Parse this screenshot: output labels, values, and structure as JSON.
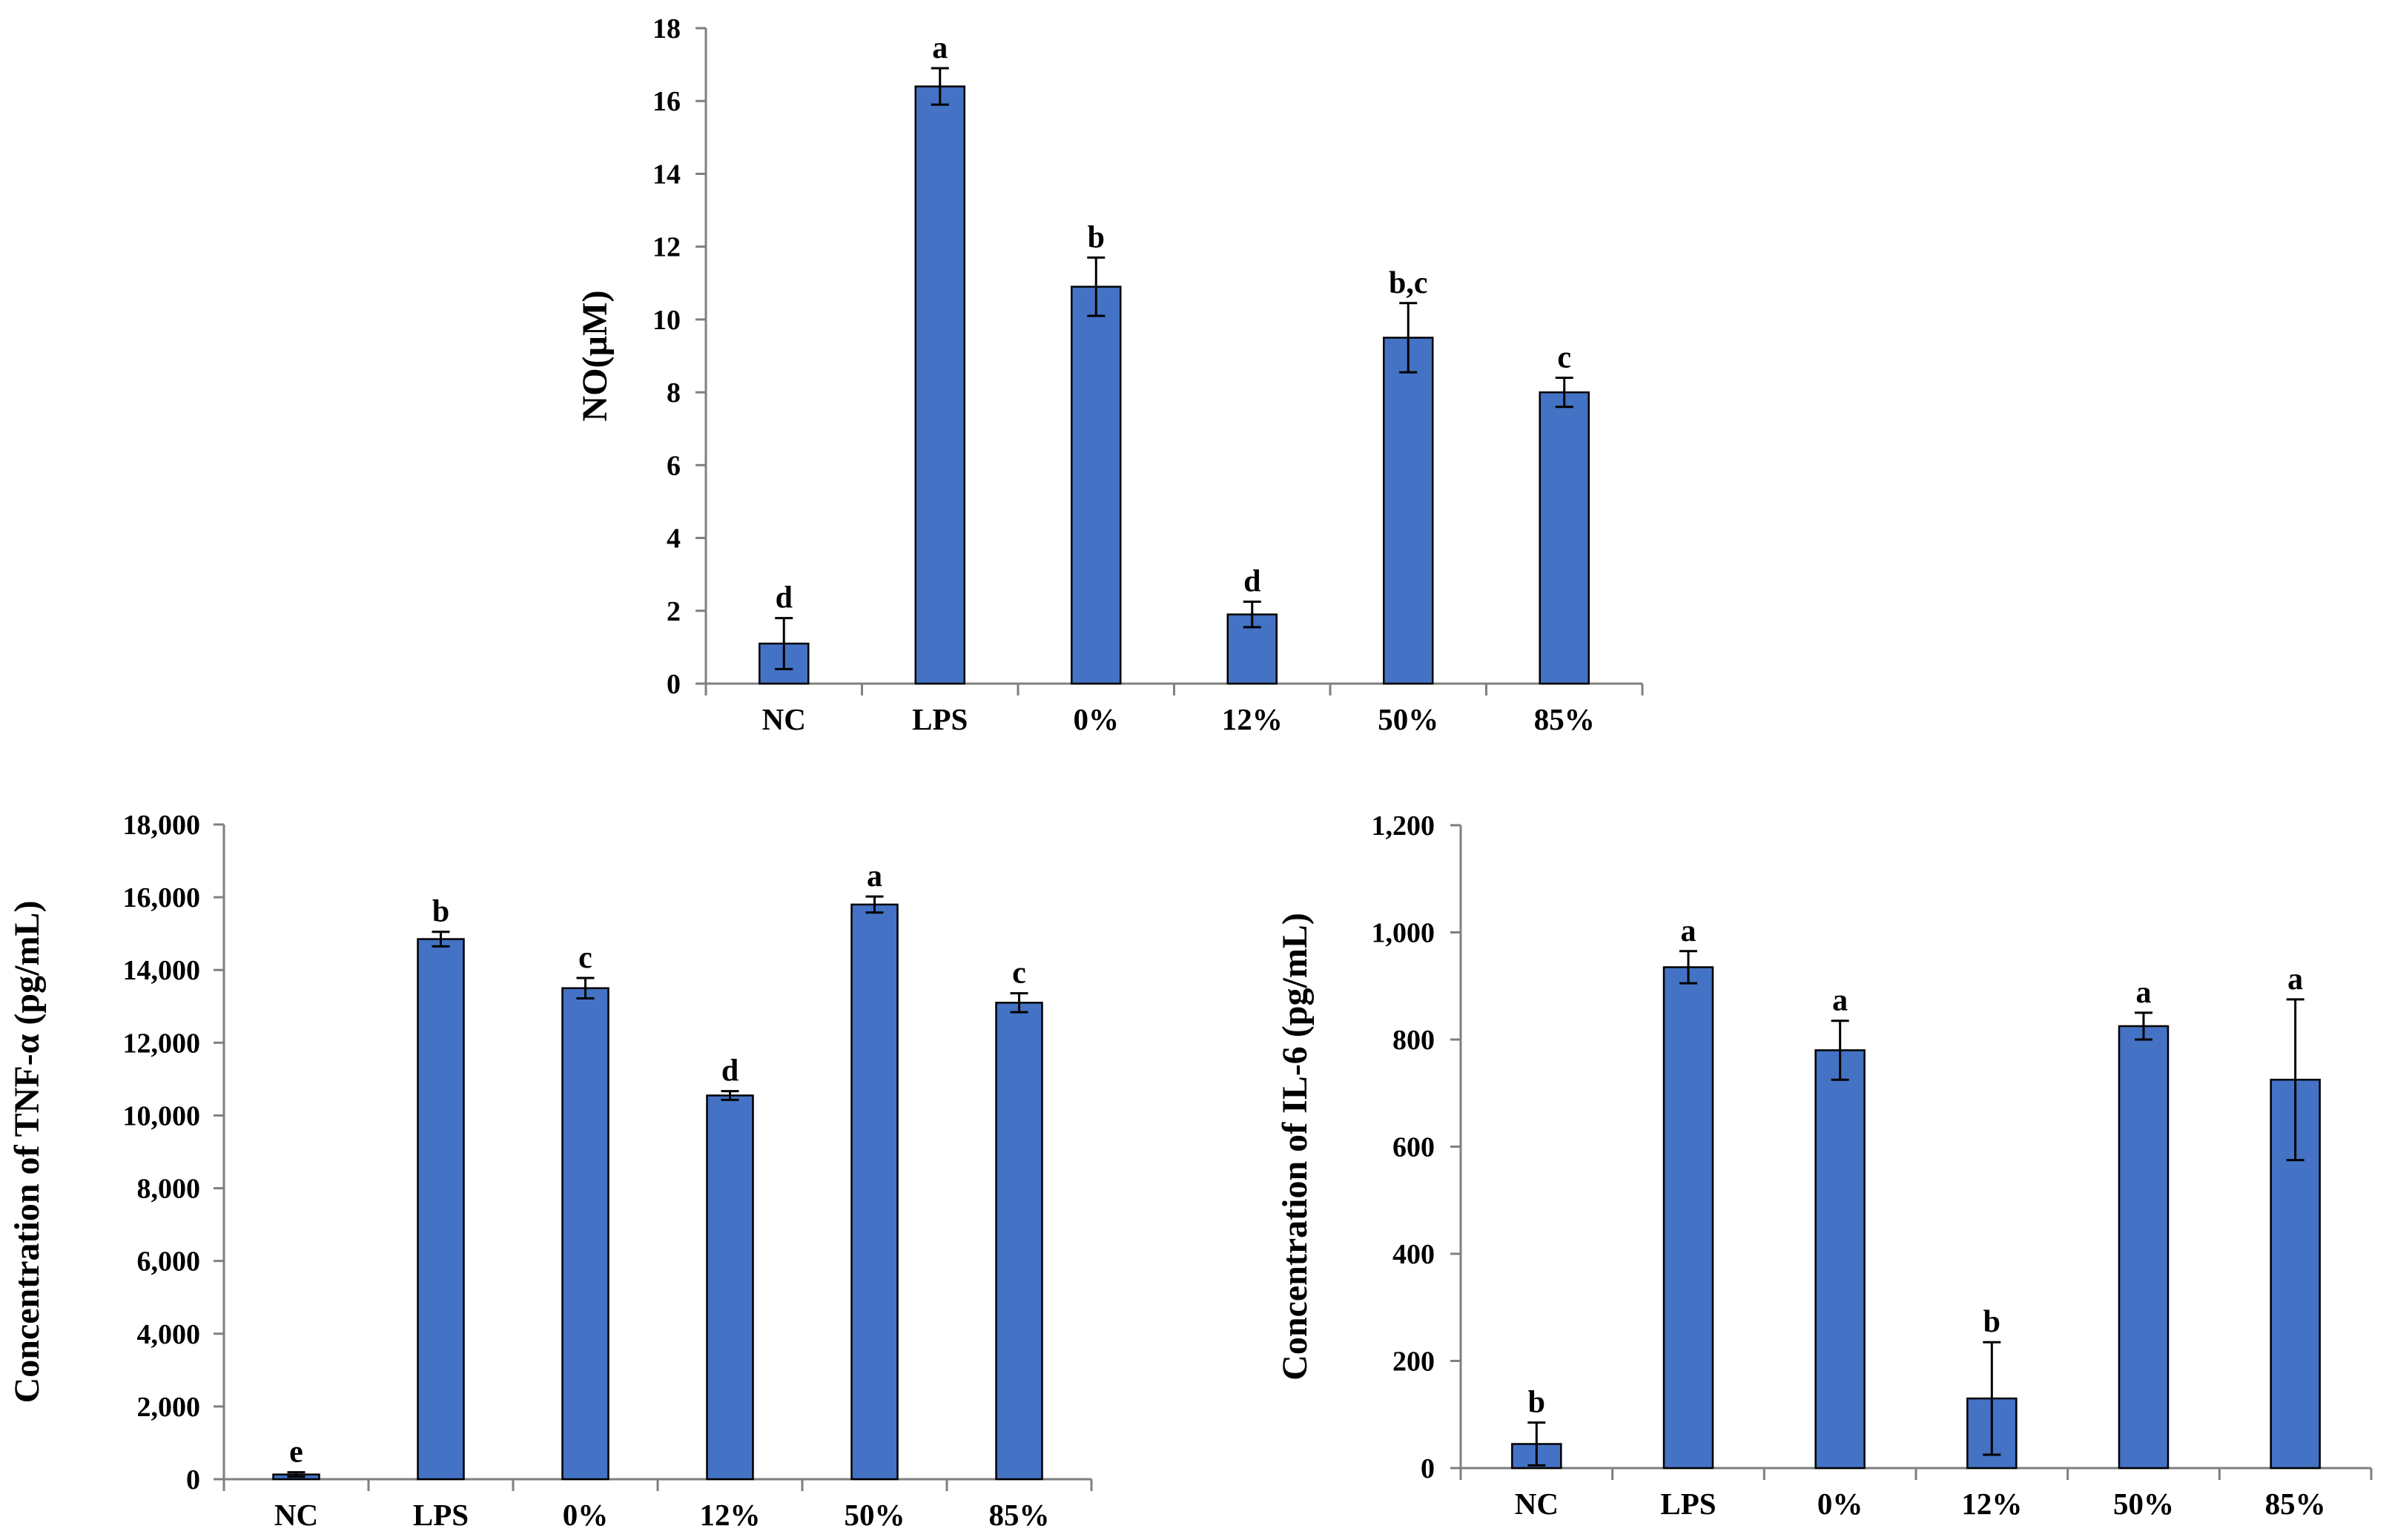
{
  "chart_data": [
    {
      "type": "bar",
      "title": "",
      "xlabel": "",
      "ylabel": "NO(µM)",
      "ylim": [
        0,
        18
      ],
      "yticks": [
        "0",
        "2",
        "4",
        "6",
        "8",
        "10",
        "12",
        "14",
        "16",
        "18"
      ],
      "categories": [
        "NC",
        "LPS",
        "0%",
        "12%",
        "50%",
        "85%"
      ],
      "values": [
        1.1,
        16.4,
        10.9,
        1.9,
        9.5,
        8.0
      ],
      "errors": [
        0.7,
        0.5,
        0.8,
        0.35,
        0.95,
        0.4
      ],
      "significance": [
        "d",
        "a",
        "b",
        "d",
        "b,c",
        "c"
      ],
      "bar_color": "#4472c4"
    },
    {
      "type": "bar",
      "title": "",
      "xlabel": "",
      "ylabel": "Concentration of  TNF-α (pg/mL)",
      "ylim": [
        0,
        18000
      ],
      "yticks": [
        "0",
        "2,000",
        "4,000",
        "6,000",
        "8,000",
        "10,000",
        "12,000",
        "14,000",
        "16,000",
        "18,000"
      ],
      "categories": [
        "NC",
        "LPS",
        "0%",
        "12%",
        "50%",
        "85%"
      ],
      "values": [
        130,
        14850,
        13500,
        10550,
        15800,
        13100
      ],
      "errors": [
        60,
        200,
        280,
        120,
        220,
        260
      ],
      "significance": [
        "e",
        "b",
        "c",
        "d",
        "a",
        "c"
      ],
      "bar_color": "#4472c4"
    },
    {
      "type": "bar",
      "title": "",
      "xlabel": "",
      "ylabel": "Concentration of  IL-6 (pg/mL)",
      "ylim": [
        0,
        1200
      ],
      "yticks": [
        "0",
        "200",
        "400",
        "600",
        "800",
        "1,000",
        "1,200"
      ],
      "categories": [
        "NC",
        "LPS",
        "0%",
        "12%",
        "50%",
        "85%"
      ],
      "values": [
        45,
        935,
        780,
        130,
        825,
        725
      ],
      "errors": [
        40,
        30,
        55,
        105,
        25,
        150
      ],
      "significance": [
        "b",
        "a",
        "a",
        "b",
        "a",
        "a"
      ],
      "bar_color": "#4472c4"
    }
  ]
}
